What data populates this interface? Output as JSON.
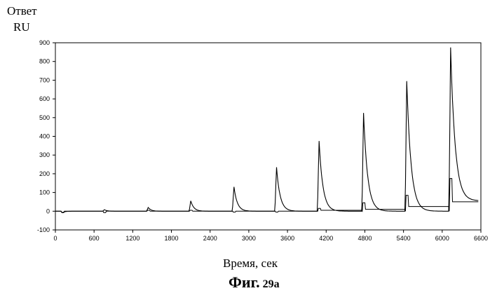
{
  "chart_data": {
    "type": "line",
    "ylabel_line1": "Ответ",
    "ylabel_line2": "RU",
    "xlabel": "Время, сек",
    "caption_main": "Фиг.",
    "caption_num": "29а",
    "xlim": [
      0,
      6600
    ],
    "ylim": [
      -100,
      900
    ],
    "xticks": [
      0,
      600,
      1200,
      1800,
      2400,
      3000,
      3600,
      4200,
      4800,
      5400,
      6000,
      6600
    ],
    "yticks": [
      -100,
      0,
      100,
      200,
      300,
      400,
      500,
      600,
      700,
      800,
      900
    ],
    "grid": false,
    "series": [
      {
        "peaks": [
          {
            "x": 110,
            "y": -8
          },
          {
            "x": 760,
            "y": 8
          },
          {
            "x": 1440,
            "y": 20
          },
          {
            "x": 2100,
            "y": 55
          },
          {
            "x": 2770,
            "y": 130
          },
          {
            "x": 3430,
            "y": 235
          },
          {
            "x": 4090,
            "y": 375
          },
          {
            "x": 4780,
            "y": 525
          },
          {
            "x": 5450,
            "y": 695
          },
          {
            "x": 6130,
            "y": 875
          }
        ],
        "end_baseline": 55
      },
      {
        "peaks": [
          {
            "x": 110,
            "y": -8
          },
          {
            "x": 760,
            "y": -8
          },
          {
            "x": 1440,
            "y": 5
          },
          {
            "x": 2100,
            "y": 5
          },
          {
            "x": 2770,
            "y": -5
          },
          {
            "x": 3430,
            "y": -5
          },
          {
            "x": 4090,
            "y": 15
          },
          {
            "x": 4780,
            "y": 45
          },
          {
            "x": 5450,
            "y": 85
          },
          {
            "x": 6130,
            "y": 175
          }
        ],
        "plateau_levels": [
          0,
          0,
          0,
          0,
          0,
          0,
          5,
          10,
          25,
          50
        ]
      }
    ]
  }
}
